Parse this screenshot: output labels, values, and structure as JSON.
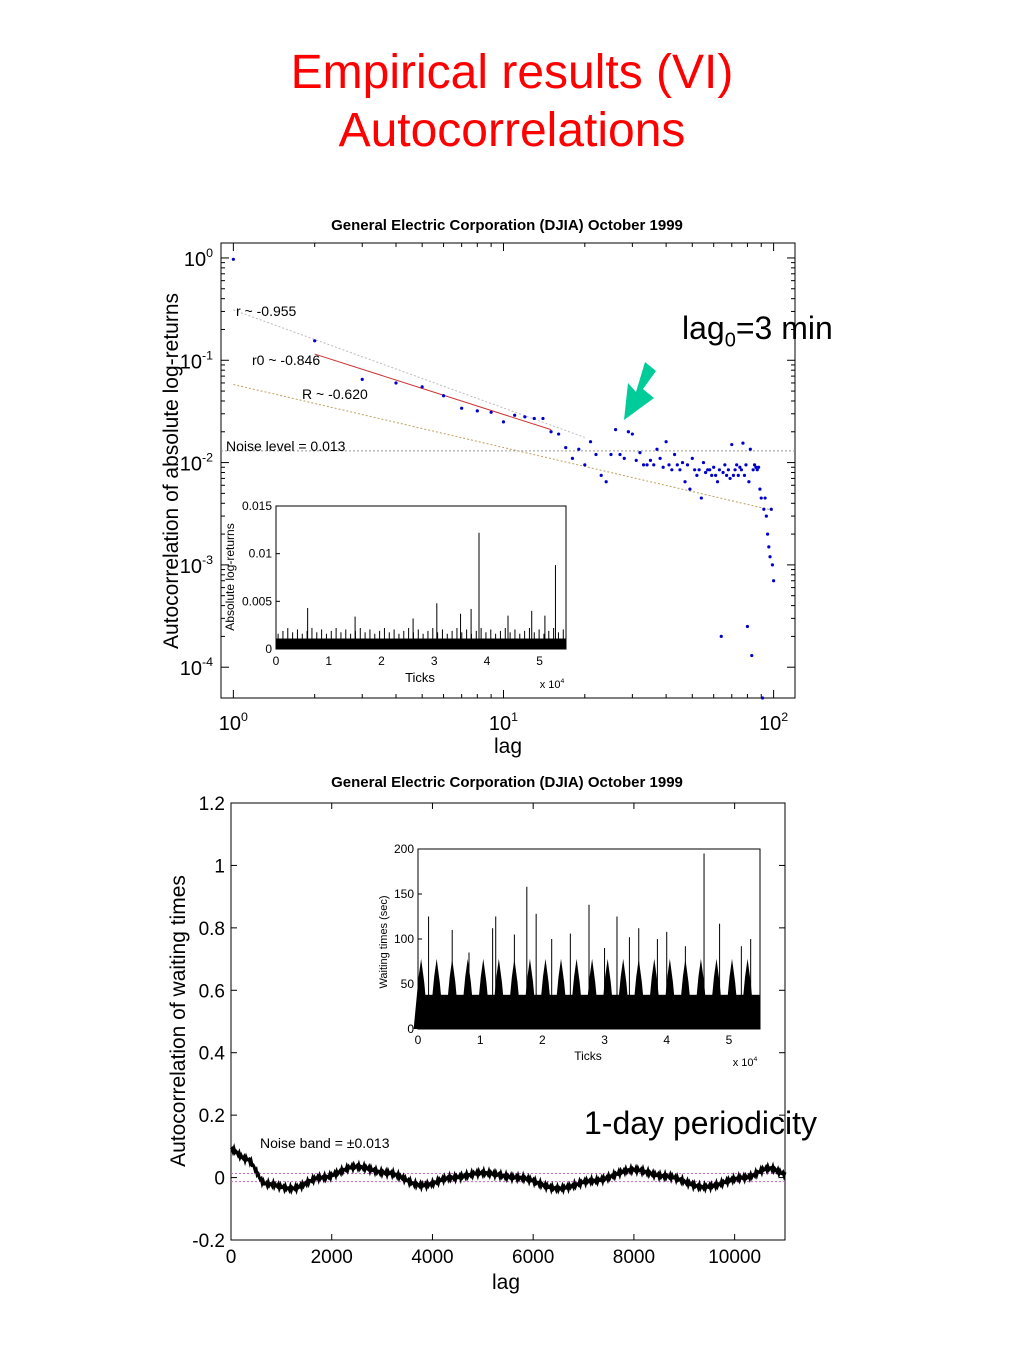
{
  "slide": {
    "title_line1": "Empirical results (VI)",
    "title_line2": "Autocorrelations",
    "annotation_lag0": {
      "base": "lag",
      "sub": "0",
      "suffix": "=3 min"
    },
    "annotation_periodicity": "1-day periodicity",
    "arrow_color": "#00cc99"
  },
  "chart_data": [
    {
      "type": "scatter",
      "title": "General Electric Corporation (DJIA) October 1999",
      "xlabel": "lag",
      "ylabel": "Autocorrelation of absolute log-returns",
      "xscale": "log",
      "yscale": "log",
      "xlim": [
        0.9,
        120
      ],
      "ylim": [
        5e-05,
        1.4
      ],
      "xticks": [
        {
          "v": 1,
          "label": "10",
          "exp": "0"
        },
        {
          "v": 10,
          "label": "10",
          "exp": "1"
        },
        {
          "v": 100,
          "label": "10",
          "exp": "2"
        }
      ],
      "yticks": [
        {
          "v": 1,
          "label": "10",
          "exp": "0"
        },
        {
          "v": 0.1,
          "label": "10",
          "exp": "-1"
        },
        {
          "v": 0.01,
          "label": "10",
          "exp": "-2"
        },
        {
          "v": 0.001,
          "label": "10",
          "exp": "-3"
        },
        {
          "v": 0.0001,
          "label": "10",
          "exp": "-4"
        }
      ],
      "point_color": "#0000cc",
      "points": [
        [
          1,
          0.97
        ],
        [
          2,
          0.155
        ],
        [
          3,
          0.065
        ],
        [
          4,
          0.06
        ],
        [
          5,
          0.055
        ],
        [
          6,
          0.045
        ],
        [
          7,
          0.034
        ],
        [
          8,
          0.032
        ],
        [
          9,
          0.031
        ],
        [
          10,
          0.025
        ],
        [
          11,
          0.029
        ],
        [
          12,
          0.028
        ],
        [
          13,
          0.027
        ],
        [
          14,
          0.027
        ],
        [
          15,
          0.02
        ],
        [
          16,
          0.019
        ],
        [
          17,
          0.014
        ],
        [
          18,
          0.011
        ],
        [
          19,
          0.0135
        ],
        [
          20,
          0.0095
        ],
        [
          21,
          0.016
        ],
        [
          22,
          0.012
        ],
        [
          23,
          0.0075
        ],
        [
          24,
          0.0065
        ],
        [
          25,
          0.012
        ],
        [
          26,
          0.021
        ],
        [
          27,
          0.012
        ],
        [
          28,
          0.011
        ],
        [
          29,
          0.02
        ],
        [
          30,
          0.019
        ],
        [
          31,
          0.0105
        ],
        [
          32,
          0.0125
        ],
        [
          33,
          0.0095
        ],
        [
          34,
          0.0095
        ],
        [
          35,
          0.0105
        ],
        [
          36,
          0.0095
        ],
        [
          37,
          0.0135
        ],
        [
          38,
          0.011
        ],
        [
          39,
          0.009
        ],
        [
          40,
          0.016
        ],
        [
          41,
          0.0095
        ],
        [
          42,
          0.0085
        ],
        [
          43,
          0.012
        ],
        [
          44,
          0.0095
        ],
        [
          45,
          0.0085
        ],
        [
          46,
          0.01
        ],
        [
          47,
          0.0065
        ],
        [
          48,
          0.0095
        ],
        [
          49,
          0.0055
        ],
        [
          50,
          0.011
        ],
        [
          51,
          0.0085
        ],
        [
          52,
          0.0075
        ],
        [
          53,
          0.0085
        ],
        [
          54,
          0.0045
        ],
        [
          55,
          0.01
        ],
        [
          56,
          0.008
        ],
        [
          57,
          0.0085
        ],
        [
          58,
          0.0085
        ],
        [
          59,
          0.0075
        ],
        [
          60,
          0.009
        ],
        [
          61,
          0.0075
        ],
        [
          62,
          0.0065
        ],
        [
          63,
          0.0085
        ],
        [
          64,
          0.0002
        ],
        [
          65,
          0.008
        ],
        [
          66,
          0.0095
        ],
        [
          67,
          0.0075
        ],
        [
          68,
          0.0085
        ],
        [
          69,
          0.007
        ],
        [
          70,
          0.015
        ],
        [
          71,
          0.0075
        ],
        [
          72,
          0.0085
        ],
        [
          73,
          0.0095
        ],
        [
          74,
          0.0075
        ],
        [
          75,
          0.009
        ],
        [
          76,
          0.0085
        ],
        [
          77,
          0.0155
        ],
        [
          78,
          0.0075
        ],
        [
          79,
          0.0095
        ],
        [
          80,
          0.00025
        ],
        [
          81,
          0.0065
        ],
        [
          82,
          0.0135
        ],
        [
          83,
          0.00013
        ],
        [
          84,
          0.0085
        ],
        [
          85,
          0.0095
        ],
        [
          86,
          0.009
        ],
        [
          87,
          0.0085
        ],
        [
          88,
          0.009
        ],
        [
          89,
          0.0055
        ],
        [
          90,
          0.0045
        ],
        [
          91,
          5e-05
        ],
        [
          92,
          0.0035
        ],
        [
          93,
          0.0045
        ],
        [
          94,
          0.003
        ],
        [
          95,
          0.002
        ],
        [
          96,
          0.0015
        ],
        [
          97,
          0.0012
        ],
        [
          98,
          0.0035
        ],
        [
          99,
          0.001
        ],
        [
          100,
          0.0007
        ]
      ],
      "noise_level": 0.013,
      "noise_label": "Noise level = 0.013",
      "fits": [
        {
          "label": "r ~ -0.955",
          "x": [
            1,
            20
          ],
          "y": [
            0.31,
            0.0176
          ]
        },
        {
          "label": "r0 ~ -0.846",
          "x": [
            2,
            15
          ],
          "y": [
            0.115,
            0.021
          ]
        },
        {
          "label": "R ~ -0.620",
          "x": [
            1,
            100
          ],
          "y": [
            0.058,
            0.0034
          ]
        }
      ],
      "inset": {
        "xlabel": "Ticks",
        "ylabel": "Absolute log-returns",
        "xlim": [
          0,
          5.5
        ],
        "ylim": [
          0,
          0.015
        ],
        "x_multiplier": "x 10",
        "x_multiplier_exp": "4",
        "xticks": [
          "0",
          "1",
          "2",
          "3",
          "4",
          "5"
        ],
        "yticks": [
          "0",
          "0.005",
          "0.01",
          "0.015"
        ],
        "spikes": [
          [
            0.6,
            0.0043
          ],
          [
            1.5,
            0.0034
          ],
          [
            2.6,
            0.0032
          ],
          [
            3.05,
            0.0048
          ],
          [
            3.5,
            0.0037
          ],
          [
            3.7,
            0.0042
          ],
          [
            3.85,
            0.0122
          ],
          [
            4.4,
            0.0035
          ],
          [
            4.85,
            0.004
          ],
          [
            5.1,
            0.0035
          ],
          [
            5.3,
            0.0088
          ]
        ]
      }
    },
    {
      "type": "line",
      "title": "General Electric Corporation (DJIA) October 1999",
      "xlabel": "lag",
      "ylabel": "Autocorrelation of waiting times",
      "xlim": [
        0,
        11000
      ],
      "ylim": [
        -0.2,
        1.2
      ],
      "xticks": [
        "0",
        "2000",
        "4000",
        "6000",
        "8000",
        "10000"
      ],
      "yticks": [
        "-0.2",
        "0",
        "0.2",
        "0.4",
        "0.6",
        "0.8",
        "1",
        "1.2"
      ],
      "series_keypoints": [
        [
          0,
          0.09
        ],
        [
          300,
          0.06
        ],
        [
          700,
          -0.02
        ],
        [
          1200,
          -0.035
        ],
        [
          1800,
          0.0
        ],
        [
          2500,
          0.035
        ],
        [
          3100,
          0.015
        ],
        [
          3800,
          -0.025
        ],
        [
          4400,
          0.0
        ],
        [
          5000,
          0.015
        ],
        [
          5700,
          0.0
        ],
        [
          6500,
          -0.035
        ],
        [
          7200,
          -0.01
        ],
        [
          8000,
          0.025
        ],
        [
          8600,
          0.005
        ],
        [
          9400,
          -0.03
        ],
        [
          10200,
          0.0
        ],
        [
          10700,
          0.03
        ],
        [
          11000,
          0.012
        ]
      ],
      "noise_band": 0.013,
      "noise_label": "Noise band = ±0.013",
      "inset": {
        "xlabel": "Ticks",
        "ylabel": "Waiting times (sec)",
        "xlim": [
          0,
          5.5
        ],
        "ylim": [
          0,
          200
        ],
        "x_multiplier": "x 10",
        "x_multiplier_exp": "4",
        "xticks": [
          "0",
          "1",
          "2",
          "3",
          "4",
          "5"
        ],
        "yticks": [
          "0",
          "50",
          "100",
          "150",
          "200"
        ],
        "spikes": [
          [
            0.17,
            125
          ],
          [
            0.55,
            110
          ],
          [
            0.82,
            85
          ],
          [
            1.2,
            112
          ],
          [
            1.25,
            125
          ],
          [
            1.55,
            105
          ],
          [
            1.75,
            158
          ],
          [
            1.9,
            128
          ],
          [
            2.15,
            100
          ],
          [
            2.45,
            106
          ],
          [
            2.75,
            138
          ],
          [
            3.0,
            90
          ],
          [
            3.2,
            125
          ],
          [
            3.4,
            102
          ],
          [
            3.55,
            112
          ],
          [
            3.85,
            100
          ],
          [
            4.0,
            108
          ],
          [
            4.3,
            92
          ],
          [
            4.6,
            195
          ],
          [
            4.85,
            117
          ],
          [
            5.2,
            92
          ],
          [
            5.35,
            100
          ]
        ]
      }
    }
  ]
}
